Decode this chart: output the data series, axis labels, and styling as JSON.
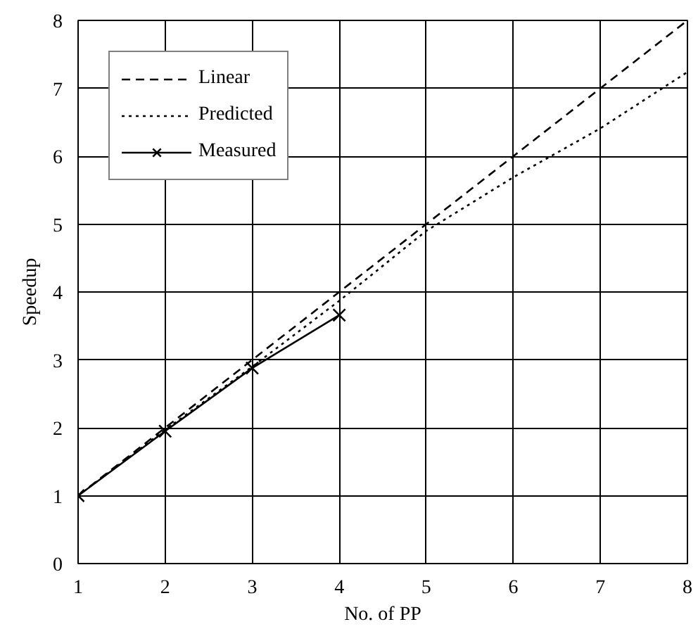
{
  "chart_data": {
    "type": "line",
    "xlabel": "No. of PP",
    "ylabel": "Speedup",
    "xlim": [
      1,
      8
    ],
    "ylim": [
      0,
      8
    ],
    "xticks": [
      1,
      2,
      3,
      4,
      5,
      6,
      7,
      8
    ],
    "yticks": [
      0,
      1,
      2,
      3,
      4,
      5,
      6,
      7,
      8
    ],
    "grid": true,
    "legend": "top left",
    "series": [
      {
        "name": "Linear",
        "color": "#000000",
        "x": [
          1,
          2,
          3,
          4,
          5,
          6,
          7,
          8
        ],
        "values": [
          1,
          2,
          3,
          4,
          5,
          6,
          7,
          8
        ],
        "line_style": "dashed",
        "marker": "none"
      },
      {
        "name": "Predicted",
        "color": "#000000",
        "x": [
          1,
          2,
          3,
          4,
          5,
          6,
          7,
          8
        ],
        "values": [
          1,
          1.97,
          2.9,
          3.87,
          4.9,
          5.69,
          6.41,
          7.24
        ],
        "line_style": "dotted",
        "marker": "none"
      },
      {
        "name": "Measured",
        "color": "#000000",
        "x": [
          1,
          2,
          3,
          4
        ],
        "values": [
          1,
          1.95,
          2.88,
          3.66
        ],
        "line_style": "solid",
        "marker": "cross"
      }
    ]
  }
}
